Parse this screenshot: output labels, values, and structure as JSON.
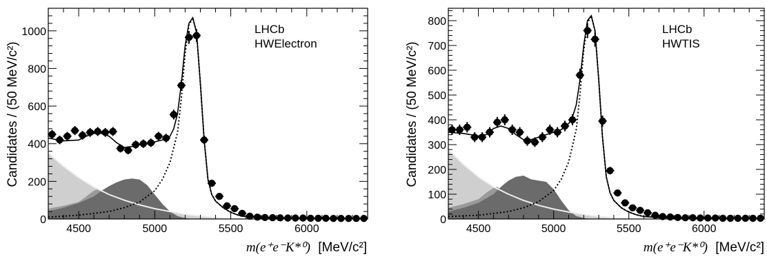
{
  "chart_data": [
    {
      "type": "line",
      "ylabel": "Candidates / (50 MeV/c²)",
      "xlabel_math": "m(e⁺e⁻K*⁰)",
      "xlabel_unit": "[MeV/c²]",
      "legend": [
        "LHCb",
        "HWElectron"
      ],
      "xlim": [
        4300,
        6400
      ],
      "ylim": [
        0,
        1120
      ],
      "xticks": [
        4500,
        5000,
        5500,
        6000
      ],
      "yticks": [
        0,
        200,
        400,
        600,
        800,
        1000
      ],
      "data_points": {
        "x": [
          4325,
          4375,
          4425,
          4475,
          4525,
          4575,
          4625,
          4675,
          4725,
          4775,
          4825,
          4875,
          4925,
          4975,
          5025,
          5075,
          5125,
          5175,
          5225,
          5275,
          5325,
          5375,
          5425,
          5475,
          5525,
          5575,
          5625,
          5675,
          5725,
          5775,
          5825,
          5875,
          5925,
          5975,
          6025,
          6075,
          6125,
          6175,
          6225,
          6275,
          6325,
          6375
        ],
        "y": [
          450,
          420,
          440,
          470,
          445,
          460,
          465,
          460,
          465,
          375,
          365,
          395,
          400,
          405,
          440,
          430,
          555,
          710,
          965,
          975,
          420,
          190,
          120,
          70,
          55,
          30,
          15,
          10,
          8,
          7,
          6,
          5,
          5,
          5,
          4,
          4,
          4,
          3,
          3,
          3,
          3,
          3
        ]
      },
      "total_fit": {
        "x": [
          4300,
          4400,
          4500,
          4550,
          4600,
          4650,
          4700,
          4750,
          4800,
          4850,
          4900,
          4950,
          5000,
          5050,
          5100,
          5125,
          5150,
          5175,
          5200,
          5225,
          5250,
          5275,
          5300,
          5325,
          5350,
          5375,
          5400,
          5450,
          5500,
          5550,
          5600,
          5700,
          5800,
          6000,
          6200,
          6400
        ],
        "y": [
          430,
          415,
          420,
          440,
          455,
          455,
          440,
          405,
          380,
          385,
          395,
          400,
          410,
          420,
          440,
          480,
          560,
          720,
          920,
          1040,
          1070,
          990,
          720,
          420,
          210,
          130,
          95,
          60,
          35,
          20,
          12,
          7,
          5,
          4,
          3,
          3
        ]
      },
      "signal_fit": {
        "x": [
          4300,
          4500,
          4700,
          4800,
          4900,
          5000,
          5050,
          5100,
          5150,
          5175,
          5200,
          5225,
          5250,
          5275,
          5300,
          5325,
          5350,
          5375,
          5400,
          5450,
          5500,
          5550,
          5600,
          5700,
          5800,
          6000,
          6400
        ],
        "y": [
          10,
          20,
          40,
          60,
          90,
          150,
          210,
          300,
          460,
          640,
          880,
          1030,
          1070,
          990,
          720,
          420,
          210,
          130,
          95,
          60,
          35,
          20,
          12,
          7,
          5,
          4,
          3
        ]
      },
      "background_light": {
        "x": [
          4300,
          4400,
          4500,
          4600,
          4700,
          4800,
          4900,
          5000,
          5100,
          5200,
          5300,
          5400,
          5500,
          5550,
          5600
        ],
        "y": [
          350,
          280,
          220,
          170,
          130,
          100,
          75,
          55,
          40,
          25,
          15,
          8,
          3,
          1,
          0
        ]
      },
      "background_medium": {
        "x": [
          4300,
          4400,
          4500,
          4550,
          4600,
          4625,
          4650,
          4700,
          4750,
          4800,
          4850,
          4900,
          4950,
          5000,
          5050,
          5100,
          5150,
          5200,
          5250,
          5300
        ],
        "y": [
          55,
          70,
          90,
          120,
          150,
          160,
          150,
          120,
          100,
          90,
          80,
          65,
          50,
          35,
          20,
          10,
          5,
          2,
          1,
          0
        ]
      },
      "background_dark": {
        "x": [
          4300,
          4400,
          4500,
          4600,
          4650,
          4700,
          4750,
          4800,
          4850,
          4900,
          4950,
          5000,
          5050,
          5100,
          5150,
          5200,
          5250
        ],
        "y": [
          40,
          60,
          85,
          120,
          150,
          175,
          195,
          210,
          215,
          210,
          180,
          130,
          80,
          40,
          15,
          5,
          0
        ]
      }
    },
    {
      "type": "line",
      "ylabel": "Candidates / (50 MeV/c²)",
      "xlabel_math": "m(e⁺e⁻K*⁰)",
      "xlabel_unit": "[MeV/c²]",
      "legend": [
        "LHCb",
        "HWTIS"
      ],
      "xlim": [
        4300,
        6400
      ],
      "ylim": [
        0,
        850
      ],
      "xticks": [
        4500,
        5000,
        5500,
        6000
      ],
      "yticks": [
        0,
        100,
        200,
        300,
        400,
        500,
        600,
        700,
        800
      ],
      "data_points": {
        "x": [
          4325,
          4375,
          4425,
          4475,
          4525,
          4575,
          4625,
          4675,
          4725,
          4775,
          4825,
          4875,
          4925,
          4975,
          5025,
          5075,
          5125,
          5175,
          5225,
          5275,
          5325,
          5375,
          5425,
          5475,
          5525,
          5575,
          5625,
          5675,
          5725,
          5775,
          5825,
          5875,
          5925,
          5975,
          6025,
          6075,
          6125,
          6175,
          6225,
          6275,
          6325,
          6375
        ],
        "y": [
          360,
          360,
          370,
          330,
          330,
          350,
          390,
          400,
          360,
          350,
          315,
          310,
          330,
          360,
          350,
          375,
          400,
          580,
          760,
          725,
          395,
          195,
          105,
          65,
          45,
          35,
          25,
          15,
          10,
          8,
          6,
          5,
          5,
          4,
          4,
          4,
          3,
          3,
          3,
          3,
          3,
          3
        ]
      },
      "total_fit": {
        "x": [
          4300,
          4400,
          4500,
          4550,
          4600,
          4650,
          4700,
          4750,
          4800,
          4850,
          4900,
          4950,
          5000,
          5050,
          5100,
          5125,
          5150,
          5175,
          5200,
          5225,
          5250,
          5275,
          5300,
          5325,
          5350,
          5375,
          5400,
          5450,
          5500,
          5550,
          5600,
          5700,
          5800,
          6000,
          6200,
          6400
        ],
        "y": [
          350,
          345,
          335,
          340,
          365,
          375,
          365,
          340,
          320,
          320,
          330,
          340,
          350,
          360,
          385,
          410,
          460,
          560,
          700,
          800,
          820,
          760,
          560,
          330,
          170,
          105,
          75,
          45,
          28,
          17,
          10,
          6,
          4,
          3,
          3,
          3
        ]
      },
      "signal_fit": {
        "x": [
          4300,
          4500,
          4700,
          4800,
          4900,
          5000,
          5050,
          5100,
          5150,
          5175,
          5200,
          5225,
          5250,
          5275,
          5300,
          5325,
          5350,
          5375,
          5400,
          5450,
          5500,
          5550,
          5600,
          5700,
          5800,
          6000,
          6400
        ],
        "y": [
          10,
          15,
          30,
          45,
          70,
          115,
          160,
          230,
          360,
          500,
          680,
          790,
          820,
          760,
          560,
          330,
          170,
          105,
          75,
          45,
          28,
          17,
          10,
          6,
          4,
          3,
          3
        ]
      },
      "background_light": {
        "x": [
          4300,
          4400,
          4500,
          4600,
          4700,
          4800,
          4900,
          5000,
          5100,
          5200,
          5300,
          5400,
          5500,
          5550,
          5600
        ],
        "y": [
          280,
          220,
          170,
          130,
          100,
          75,
          55,
          40,
          28,
          18,
          10,
          5,
          2,
          1,
          0
        ]
      },
      "background_medium": {
        "x": [
          4300,
          4400,
          4500,
          4550,
          4600,
          4625,
          4650,
          4700,
          4750,
          4800,
          4850,
          4900,
          4950,
          5000,
          5050,
          5100,
          5150,
          5200,
          5250,
          5300
        ],
        "y": [
          45,
          60,
          80,
          105,
          125,
          130,
          120,
          95,
          80,
          70,
          60,
          50,
          38,
          26,
          15,
          8,
          4,
          2,
          1,
          0
        ]
      },
      "background_dark": {
        "x": [
          4300,
          4400,
          4500,
          4600,
          4650,
          4700,
          4750,
          4800,
          4850,
          4900,
          4950,
          5000,
          5050,
          5100,
          5150,
          5200,
          5250
        ],
        "y": [
          30,
          45,
          65,
          100,
          130,
          155,
          170,
          175,
          160,
          155,
          150,
          120,
          75,
          35,
          12,
          4,
          0
        ]
      }
    }
  ],
  "colors": {
    "light_fill": "#cfcfcf",
    "medium_fill": "#9a9a9a",
    "dark_fill": "#6b6b6b",
    "light_line": "#ededed",
    "markers": "#000000"
  }
}
